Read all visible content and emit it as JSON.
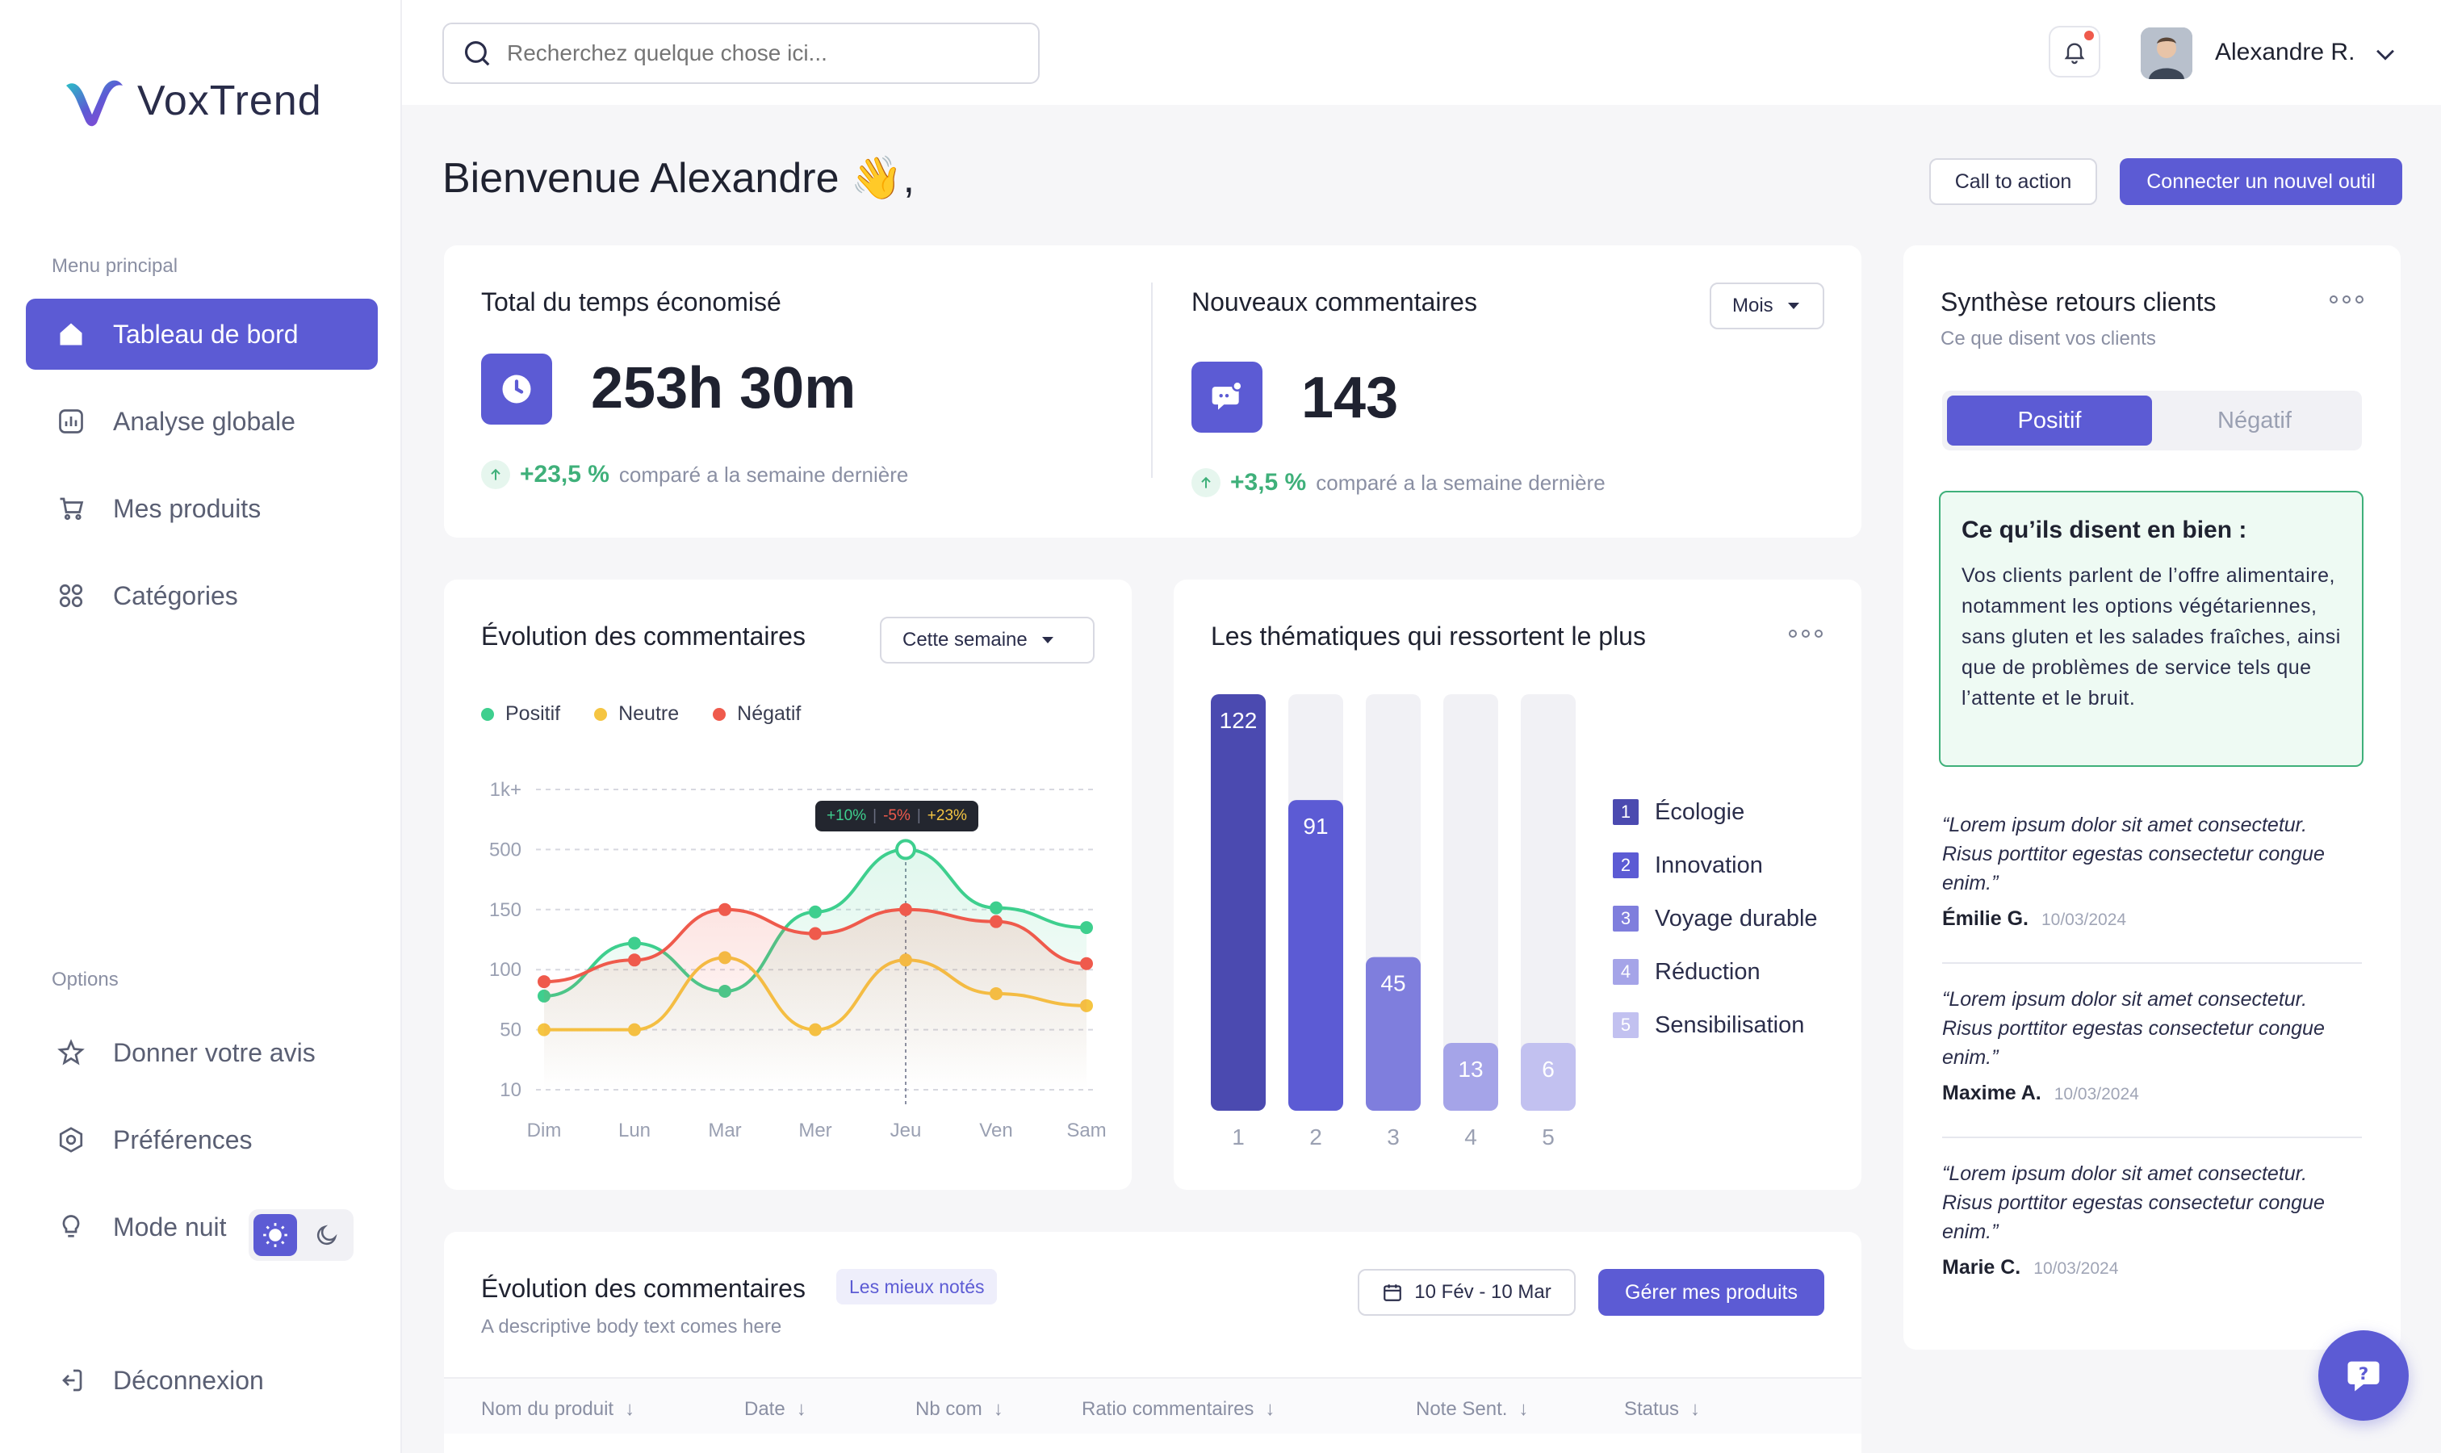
{
  "app": {
    "brand": "VoxTrend"
  },
  "sidebar": {
    "menu_label": "Menu principal",
    "items": [
      {
        "label": "Tableau de bord",
        "icon": "home-icon",
        "active": true
      },
      {
        "label": "Analyse globale",
        "icon": "chart-icon"
      },
      {
        "label": "Mes produits",
        "icon": "cart-icon"
      },
      {
        "label": "Catégories",
        "icon": "categories-icon"
      }
    ],
    "options_label": "Options",
    "options": [
      {
        "label": "Donner votre avis",
        "icon": "star-icon"
      },
      {
        "label": "Préférences",
        "icon": "settings-icon"
      },
      {
        "label": "Mode nuit",
        "icon": "bulb-icon"
      }
    ],
    "logout": "Déconnexion"
  },
  "topbar": {
    "search_placeholder": "Recherchez quelque chose ici...",
    "user_name": "Alexandre R."
  },
  "header": {
    "welcome": "Bienvenue Alexandre 👋,",
    "cta": "Call to action",
    "connect": "Connecter un nouvel outil"
  },
  "stats": {
    "time_saved": {
      "title": "Total du temps économisé",
      "value": "253h 30m",
      "pct": "+23,5 %",
      "compare": "comparé a la semaine dernière"
    },
    "new_comments": {
      "title": "Nouveaux commentaires",
      "period": "Mois",
      "value": "143",
      "pct": "+3,5 %",
      "compare": "comparé a la semaine dernière"
    }
  },
  "evolution": {
    "title": "Évolution des commentaires",
    "period": "Cette semaine",
    "tooltip": {
      "pos": "+10%",
      "neg": "-5%",
      "neu": "+23%"
    }
  },
  "themes": {
    "title": "Les thématiques qui ressortent le plus"
  },
  "chart_data": [
    {
      "type": "line",
      "categories": [
        "Dim",
        "Lun",
        "Mar",
        "Mer",
        "Jeu",
        "Ven",
        "Sam"
      ],
      "y_ticks": [
        "10",
        "50",
        "100",
        "150",
        "500",
        "1k+"
      ],
      "series": [
        {
          "name": "Positif",
          "color": "#3ecf8e",
          "values": [
            78,
            122,
            82,
            148,
            500,
            160,
            135
          ]
        },
        {
          "name": "Neutre",
          "color": "#f5c542",
          "values": [
            50,
            50,
            110,
            50,
            108,
            80,
            70
          ]
        },
        {
          "name": "Négatif",
          "color": "#ef5a4c",
          "values": [
            90,
            108,
            150,
            130,
            150,
            140,
            105
          ]
        }
      ]
    },
    {
      "type": "bar",
      "categories": [
        "1",
        "2",
        "3",
        "4",
        "5"
      ],
      "values": [
        122,
        91,
        45,
        13,
        6
      ],
      "ylim": [
        0,
        122
      ],
      "colors": [
        "#4b4ab0",
        "#5c5bd4",
        "#7f7edd",
        "#a5a4e8",
        "#c2c1f0"
      ],
      "legend": [
        {
          "n": "1",
          "label": "Écologie"
        },
        {
          "n": "2",
          "label": "Innovation"
        },
        {
          "n": "3",
          "label": "Voyage durable"
        },
        {
          "n": "4",
          "label": "Réduction"
        },
        {
          "n": "5",
          "label": "Sensibilisation"
        }
      ]
    }
  ],
  "feedback": {
    "title": "Synthèse retours clients",
    "subtitle": "Ce que disent vos clients",
    "tab_pos": "Positif",
    "tab_neg": "Négatif",
    "good_title": "Ce qu’ils disent en bien :",
    "good_text": "Vos clients parlent de l’offre alimentaire, notamment les options végétariennes, sans gluten et les salades fraîches, ainsi que de problèmes de service tels que l’attente et le bruit.",
    "reviews": [
      {
        "quote": "“Lorem ipsum dolor sit amet consectetur. Risus porttitor egestas consectetur congue enim.”",
        "author": "Émilie G.",
        "date": "10/03/2024"
      },
      {
        "quote": "“Lorem ipsum dolor sit amet consectetur. Risus porttitor egestas consectetur congue enim.”",
        "author": "Maxime A.",
        "date": "10/03/2024"
      },
      {
        "quote": "“Lorem ipsum dolor sit amet consectetur. Risus porttitor egestas consectetur congue enim.”",
        "author": "Marie C.",
        "date": "10/03/2024"
      }
    ]
  },
  "products": {
    "title": "Évolution des commentaires",
    "badge": "Les mieux notés",
    "desc": "A descriptive body text comes here",
    "date_range": "10 Fév - 10 Mar",
    "manage": "Gérer mes produits",
    "columns": [
      "Nom du produit",
      "Date",
      "Nb com",
      "Ratio commentaires",
      "Note Sent.",
      "Status"
    ]
  }
}
